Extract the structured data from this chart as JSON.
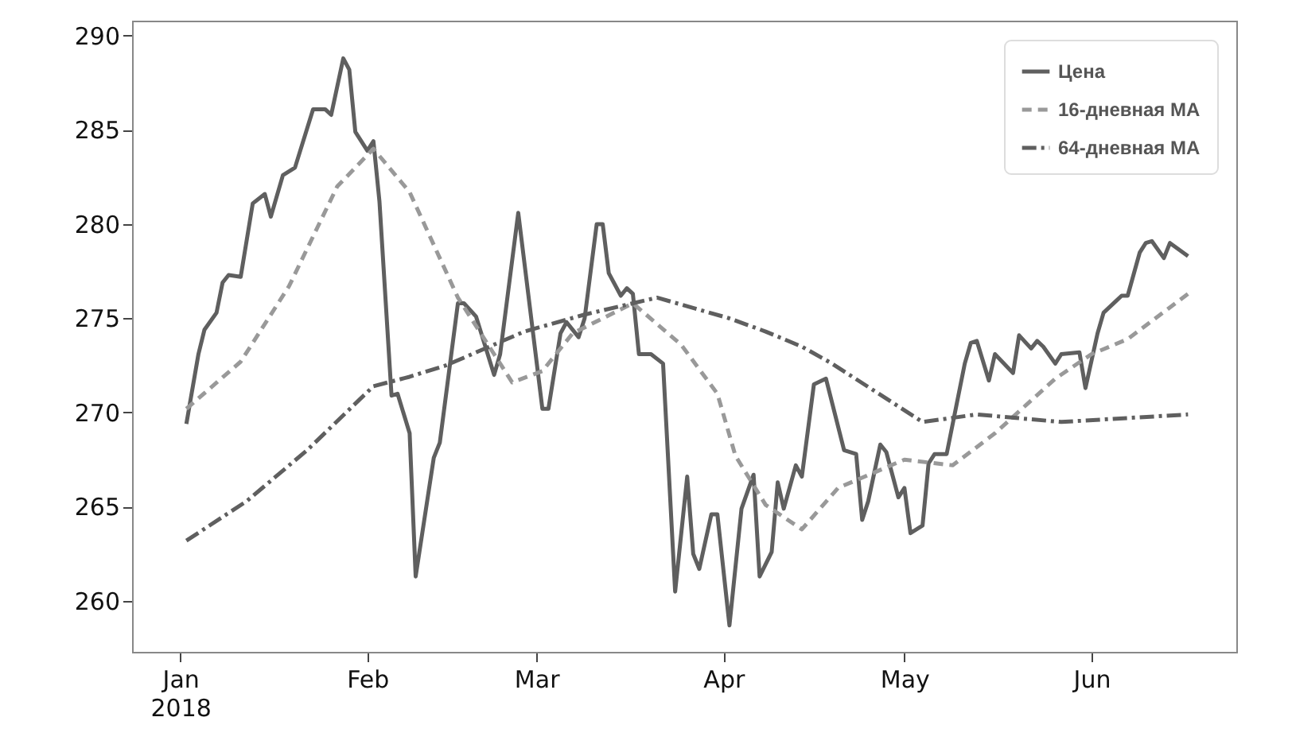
{
  "chart_data": {
    "type": "line",
    "xlim": [
      "2017-12-24",
      "2018-06-25"
    ],
    "xticks": [
      {
        "value": "2018-01",
        "label": "Jan\n2018"
      },
      {
        "value": "2018-02",
        "label": "Feb"
      },
      {
        "value": "2018-03",
        "label": "Mar"
      },
      {
        "value": "2018-04",
        "label": "Apr"
      },
      {
        "value": "2018-05",
        "label": "May"
      },
      {
        "value": "2018-06",
        "label": "Jun"
      }
    ],
    "ylim": [
      257.3,
      290.8
    ],
    "yticks": [
      260,
      265,
      270,
      275,
      280,
      285,
      290
    ],
    "grid": false,
    "legend": "top right",
    "series": [
      {
        "name": "Цена",
        "color": "#5f5f5f",
        "line_style": "solid",
        "x": [
          "2018-01-02",
          "2018-01-04",
          "2018-01-05",
          "2018-01-07",
          "2018-01-08",
          "2018-01-09",
          "2018-01-11",
          "2018-01-13",
          "2018-01-15",
          "2018-01-16",
          "2018-01-18",
          "2018-01-20",
          "2018-01-23",
          "2018-01-25",
          "2018-01-26",
          "2018-01-28",
          "2018-01-29",
          "2018-01-30",
          "2018-02-01",
          "2018-02-02",
          "2018-02-03",
          "2018-02-05",
          "2018-02-06",
          "2018-02-08",
          "2018-02-09",
          "2018-02-12",
          "2018-02-13",
          "2018-02-16",
          "2018-02-17",
          "2018-02-19",
          "2018-02-22",
          "2018-02-23",
          "2018-02-26",
          "2018-03-02",
          "2018-03-03",
          "2018-03-05",
          "2018-03-06",
          "2018-03-08",
          "2018-03-09",
          "2018-03-11",
          "2018-03-12",
          "2018-03-13",
          "2018-03-15",
          "2018-03-16",
          "2018-03-17",
          "2018-03-18",
          "2018-03-20",
          "2018-03-22",
          "2018-03-24",
          "2018-03-26",
          "2018-03-27",
          "2018-03-28",
          "2018-03-30",
          "2018-03-31",
          "2018-04-02",
          "2018-04-04",
          "2018-04-06",
          "2018-04-07",
          "2018-04-09",
          "2018-04-10",
          "2018-04-11",
          "2018-04-13",
          "2018-04-14",
          "2018-04-16",
          "2018-04-18",
          "2018-04-21",
          "2018-04-23",
          "2018-04-24",
          "2018-04-25",
          "2018-04-27",
          "2018-04-28",
          "2018-04-30",
          "2018-05-01",
          "2018-05-02",
          "2018-05-04",
          "2018-05-05",
          "2018-05-06",
          "2018-05-08",
          "2018-05-11",
          "2018-05-12",
          "2018-05-13",
          "2018-05-15",
          "2018-05-16",
          "2018-05-19",
          "2018-05-20",
          "2018-05-22",
          "2018-05-23",
          "2018-05-24",
          "2018-05-26",
          "2018-05-27",
          "2018-05-30",
          "2018-05-31",
          "2018-06-02",
          "2018-06-03",
          "2018-06-05",
          "2018-06-06",
          "2018-06-07",
          "2018-06-09",
          "2018-06-10",
          "2018-06-11",
          "2018-06-13",
          "2018-06-14",
          "2018-06-17"
        ],
        "values": [
          269.4,
          273.1,
          274.4,
          275.3,
          276.9,
          277.3,
          277.2,
          281.1,
          281.6,
          280.4,
          282.6,
          283.0,
          286.1,
          286.1,
          285.8,
          288.8,
          288.2,
          284.9,
          283.9,
          284.4,
          281.2,
          270.9,
          271.0,
          268.9,
          261.3,
          267.6,
          268.4,
          275.8,
          275.8,
          275.1,
          272.0,
          273.1,
          280.6,
          270.2,
          270.2,
          274.2,
          274.8,
          274.0,
          275.0,
          280.0,
          280.0,
          277.4,
          276.2,
          276.6,
          276.3,
          273.1,
          273.1,
          272.6,
          260.5,
          266.6,
          262.5,
          261.7,
          264.6,
          264.6,
          258.7,
          264.9,
          266.7,
          261.3,
          262.6,
          266.3,
          264.9,
          267.2,
          266.6,
          271.5,
          271.8,
          268.0,
          267.8,
          264.3,
          265.3,
          268.3,
          267.9,
          265.5,
          266.0,
          263.6,
          264.0,
          267.3,
          267.8,
          267.8,
          272.6,
          273.7,
          273.8,
          271.7,
          273.1,
          272.1,
          274.1,
          273.4,
          273.8,
          273.5,
          272.6,
          273.1,
          273.2,
          271.3,
          274.2,
          275.3,
          275.9,
          276.2,
          276.2,
          278.5,
          279.0,
          279.1,
          278.2,
          279.0,
          278.3
        ]
      },
      {
        "name": "16-дневная MA",
        "color": "#999999",
        "line_style": "dashed",
        "x": [
          "2018-01-02",
          "2018-01-11",
          "2018-01-19",
          "2018-01-27",
          "2018-02-02",
          "2018-02-08",
          "2018-02-16",
          "2018-02-22",
          "2018-02-25",
          "2018-03-02",
          "2018-03-07",
          "2018-03-17",
          "2018-03-25",
          "2018-03-31",
          "2018-04-03",
          "2018-04-08",
          "2018-04-14",
          "2018-04-20",
          "2018-05-01",
          "2018-05-09",
          "2018-05-16",
          "2018-05-26",
          "2018-06-01",
          "2018-06-07",
          "2018-06-17"
        ],
        "values": [
          270.2,
          272.7,
          276.7,
          282.0,
          284.0,
          281.7,
          276.1,
          273.1,
          271.6,
          272.2,
          274.2,
          275.8,
          273.6,
          271.0,
          267.7,
          265.1,
          263.8,
          266.0,
          267.5,
          267.2,
          268.9,
          271.8,
          273.1,
          273.9,
          276.3
        ]
      },
      {
        "name": "64-дневная MA",
        "color": "#5f5f5f",
        "line_style": "dashdot",
        "x": [
          "2018-01-02",
          "2018-01-12",
          "2018-01-22",
          "2018-02-02",
          "2018-02-08",
          "2018-02-14",
          "2018-02-27",
          "2018-03-09",
          "2018-03-21",
          "2018-04-02",
          "2018-04-08",
          "2018-04-14",
          "2018-04-19",
          "2018-05-04",
          "2018-05-13",
          "2018-05-27",
          "2018-06-17"
        ],
        "values": [
          263.2,
          265.3,
          268.0,
          271.4,
          271.9,
          272.5,
          274.3,
          275.2,
          276.1,
          275.0,
          274.3,
          273.5,
          272.6,
          269.5,
          269.9,
          269.5,
          269.9
        ]
      }
    ]
  }
}
